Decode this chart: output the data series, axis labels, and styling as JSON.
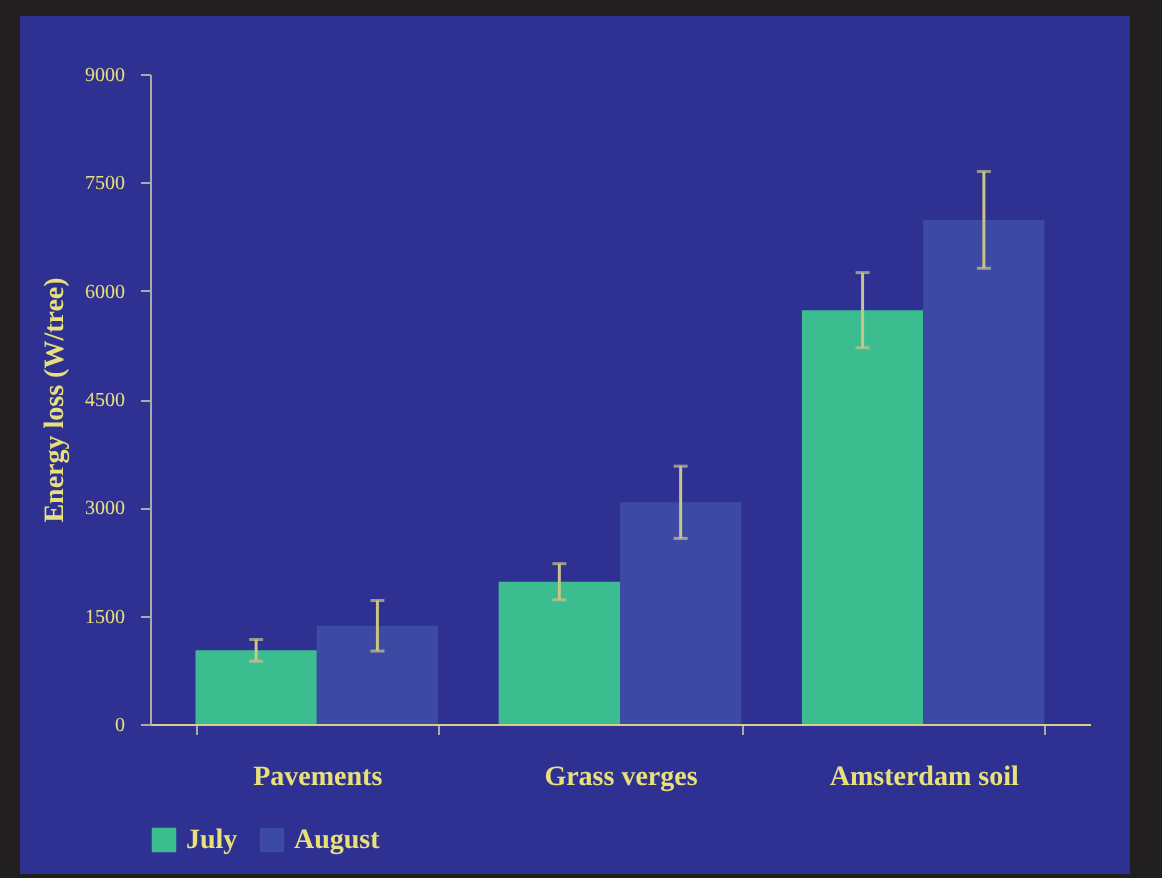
{
  "chart_data": {
    "type": "bar",
    "ylabel": "Energy loss (W/tree)",
    "categories": [
      "Pavements",
      "Grass verges",
      "Amsterdam soil"
    ],
    "series": [
      {
        "name": "July",
        "color": "#3bbd90",
        "values": [
          1020,
          1970,
          5730
        ],
        "errors": [
          150,
          250,
          520
        ]
      },
      {
        "name": "August",
        "color": "#3d4aa3",
        "values": [
          1360,
          3070,
          6980
        ],
        "errors": [
          350,
          500,
          670
        ]
      }
    ],
    "ylim": [
      0,
      9000
    ],
    "yticks": [
      0,
      1500,
      3000,
      4500,
      6000,
      7500,
      9000
    ],
    "grid": false,
    "legend": "bottom"
  }
}
